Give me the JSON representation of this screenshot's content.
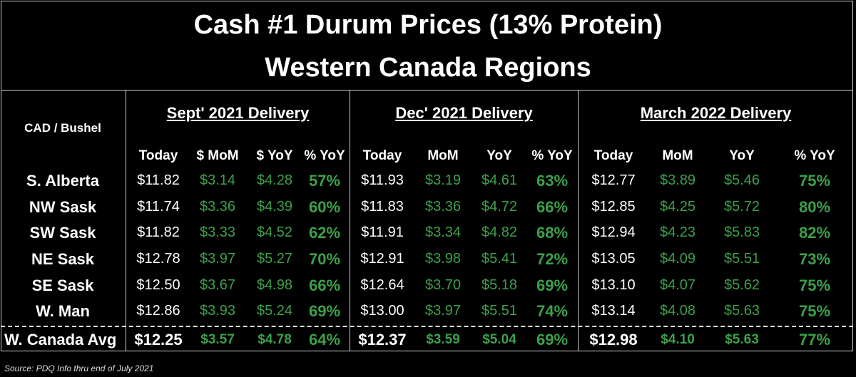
{
  "title_line1": "Cash #1 Durum Prices (13% Protein)",
  "title_line2": "Western Canada Regions",
  "unit_label": "CAD / Bushel",
  "groups": [
    {
      "label": "Sept' 2021 Delivery",
      "subheaders": [
        "Today",
        "$ MoM",
        "$ YoY",
        "% YoY"
      ]
    },
    {
      "label": "Dec' 2021 Delivery",
      "subheaders": [
        "Today",
        "MoM",
        "YoY",
        "% YoY"
      ]
    },
    {
      "label": "March 2022 Delivery",
      "subheaders": [
        "Today",
        "MoM",
        "YoY",
        "% YoY"
      ]
    }
  ],
  "rows": [
    {
      "region": "S. Alberta",
      "values": [
        [
          "$11.82",
          "$3.14",
          "$4.28",
          "57%"
        ],
        [
          "$11.93",
          "$3.19",
          "$4.61",
          "63%"
        ],
        [
          "$12.77",
          "$3.89",
          "$5.46",
          "75%"
        ]
      ]
    },
    {
      "region": "NW Sask",
      "values": [
        [
          "$11.74",
          "$3.36",
          "$4.39",
          "60%"
        ],
        [
          "$11.83",
          "$3.36",
          "$4.72",
          "66%"
        ],
        [
          "$12.85",
          "$4.25",
          "$5.72",
          "80%"
        ]
      ]
    },
    {
      "region": "SW Sask",
      "values": [
        [
          "$11.82",
          "$3.33",
          "$4.52",
          "62%"
        ],
        [
          "$11.91",
          "$3.34",
          "$4.82",
          "68%"
        ],
        [
          "$12.94",
          "$4.23",
          "$5.83",
          "82%"
        ]
      ]
    },
    {
      "region": "NE Sask",
      "values": [
        [
          "$12.78",
          "$3.97",
          "$5.27",
          "70%"
        ],
        [
          "$12.91",
          "$3.98",
          "$5.41",
          "72%"
        ],
        [
          "$13.05",
          "$4.09",
          "$5.51",
          "73%"
        ]
      ]
    },
    {
      "region": "SE Sask",
      "values": [
        [
          "$12.50",
          "$3.67",
          "$4.98",
          "66%"
        ],
        [
          "$12.64",
          "$3.70",
          "$5.18",
          "69%"
        ],
        [
          "$13.10",
          "$4.07",
          "$5.62",
          "75%"
        ]
      ]
    },
    {
      "region": "W. Man",
      "values": [
        [
          "$12.86",
          "$3.93",
          "$5.24",
          "69%"
        ],
        [
          "$13.00",
          "$3.97",
          "$5.51",
          "74%"
        ],
        [
          "$13.14",
          "$4.08",
          "$5.63",
          "75%"
        ]
      ]
    }
  ],
  "average": {
    "label": "W. Canada Avg",
    "values": [
      [
        "$12.25",
        "$3.57",
        "$4.78",
        "64%"
      ],
      [
        "$12.37",
        "$3.59",
        "$5.04",
        "69%"
      ],
      [
        "$12.98",
        "$4.10",
        "$5.63",
        "77%"
      ]
    ]
  },
  "source": "Source: PDQ Info thru end of July 2021",
  "colors": {
    "background": "#000000",
    "text": "#ffffff",
    "positive": "#3ca04a",
    "rules": "#cfcfcf"
  }
}
